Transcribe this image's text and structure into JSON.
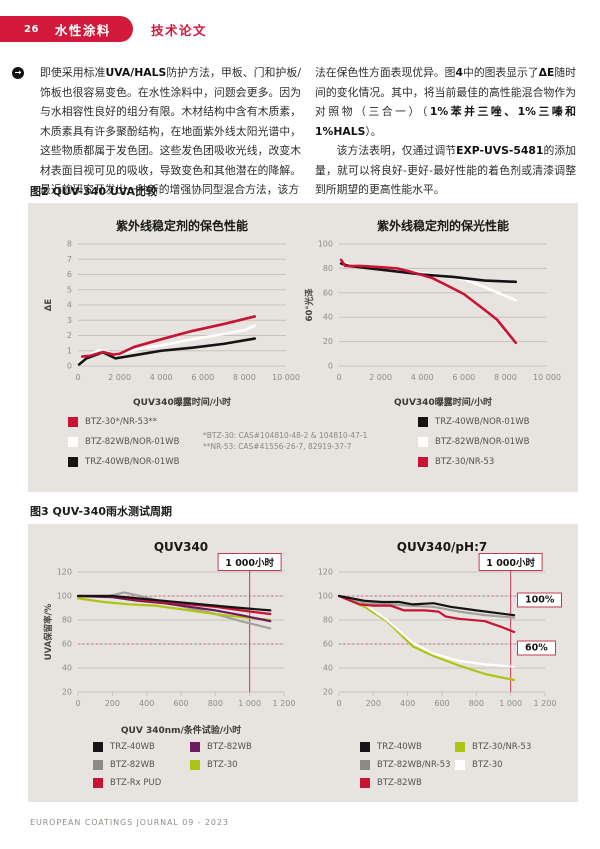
{
  "meta": {
    "accent": "#d2193b",
    "panel_bg": "#e7e4df",
    "grid_color": "#c7c3bc",
    "dashed_color": "#d4717d",
    "vline_color": "#c23a52"
  },
  "header": {
    "page_number": "26",
    "section": "水性涂料",
    "article_type": "技术论文",
    "bullet_icon": "→"
  },
  "intro": {
    "left_paragraph": [
      {
        "t": "即使采用标准"
      },
      {
        "t": "UVA/HALS",
        "b": true
      },
      {
        "t": "防护方法，甲板、门和护板/饰板也很容易变色。在水性涂料中，问题会更多。因为与水相容性良好的组分有限。木材结构中含有木质素，木质素具有许多聚酚结构，在地面紫外线太阳光谱中，这些物质都属于发色团。这些发色团吸收光线，改变木材表面目视可见的吸收，导致变色和其他潜在的降解。最近的研究开发出一种新的增强协同型混合方法，该方"
      }
    ],
    "right_paragraph_1": [
      {
        "t": "法在保色性方面表现优异。图"
      },
      {
        "t": "4",
        "b": true
      },
      {
        "t": "中的图表显示了"
      },
      {
        "t": "ΔE",
        "b": true
      },
      {
        "t": "随时间的变化情况。其中，将当前最佳的高性能混合物作为对照物（三合一）（"
      },
      {
        "t": "1%苯并三唑、1%三嗪和1%HALS",
        "b": true
      },
      {
        "t": "）。"
      }
    ],
    "right_paragraph_2": [
      {
        "t": "该方法表明，仅通过调节"
      },
      {
        "t": "EXP-UVS-5481",
        "b": true
      },
      {
        "t": "的添加量，就可以将良好-更好-最好性能的着色剂或清漆调整到所期望的更高性能水平。"
      }
    ]
  },
  "figure2": {
    "heading": "图2 QUV-340 UVA比较",
    "legend_left": [
      {
        "color": "#c81334",
        "label": "BTZ-30*/NR-53**"
      },
      {
        "color": "#ffffff",
        "label": "BTZ-82WB/NOR-01WB"
      },
      {
        "color": "#141414",
        "label": "TRZ-40WB/NOR-01WB"
      }
    ],
    "footnote_lines": [
      "*BTZ-30: CAS#104810-48-2 & 104810-47-1",
      "**NR-53: CAS#41556-26-7, 82919-37-7"
    ],
    "legend_right": [
      {
        "color": "#141414",
        "label": "TRZ-40WB/NOR-01WB"
      },
      {
        "color": "#ffffff",
        "label": "BTZ-82WB/NOR-01WB"
      },
      {
        "color": "#c81334",
        "label": "BTZ-30/NR-53"
      }
    ]
  },
  "figure3": {
    "heading": "图3 QUV-340雨水测试周期",
    "legend_left_col1": [
      {
        "color": "#141414",
        "label": "TRZ-40WB"
      },
      {
        "color": "#8c8984",
        "label": "BTZ-82WB"
      },
      {
        "color": "#c81334",
        "label": "BTZ-Rx PUD"
      }
    ],
    "legend_left_col2": [
      {
        "color": "#6d1a5f",
        "label": "BTZ-82WB"
      },
      {
        "color": "#aec414",
        "label": "BTZ-30"
      }
    ],
    "legend_right_col1": [
      {
        "color": "#141414",
        "label": "TRZ-40WB"
      },
      {
        "color": "#8c8984",
        "label": "BTZ-82WB/NR-53"
      },
      {
        "color": "#c81334",
        "label": "BTZ-82WB"
      }
    ],
    "legend_right_col2": [
      {
        "color": "#aec414",
        "label": "BTZ-30/NR-53"
      },
      {
        "color": "#ffffff",
        "label": "BTZ-30"
      }
    ]
  },
  "footer": {
    "text": "EUROPEAN COATINGS JOURNAL 09 - 2023"
  },
  "chart_data": [
    {
      "type": "line",
      "title": "紫外线稳定剂的保色性能",
      "ylabel": "ΔE",
      "xlabel": "QUV340曝露时间/小时",
      "xlim": [
        0,
        10000
      ],
      "ylim": [
        0,
        8
      ],
      "grid": "horizontal",
      "yticks": [
        {
          "v": 0,
          "l": "0"
        },
        {
          "v": 1,
          "l": "1"
        },
        {
          "v": 2,
          "l": "2"
        },
        {
          "v": 3,
          "l": "3"
        },
        {
          "v": 4,
          "l": "4"
        },
        {
          "v": 5,
          "l": "5"
        },
        {
          "v": 6,
          "l": "6"
        },
        {
          "v": 7,
          "l": "7"
        },
        {
          "v": 8,
          "l": "8"
        }
      ],
      "xticks": [
        {
          "v": 0,
          "l": "0"
        },
        {
          "v": 2000,
          "l": "2 000"
        },
        {
          "v": 4000,
          "l": "4 000"
        },
        {
          "v": 6000,
          "l": "6 000"
        },
        {
          "v": 8000,
          "l": "8 000"
        },
        {
          "v": 10000,
          "l": "10 000"
        }
      ],
      "series": [
        {
          "name": "BTZ-82WB/NOR-01WB",
          "color": "#ffffff",
          "points": [
            [
              50,
              0.2
            ],
            [
              400,
              0.6
            ],
            [
              1000,
              1.05
            ],
            [
              1400,
              0.95
            ],
            [
              1800,
              0.7
            ],
            [
              2700,
              1.05
            ],
            [
              4000,
              1.35
            ],
            [
              5500,
              1.75
            ],
            [
              7000,
              2.1
            ],
            [
              8000,
              2.35
            ],
            [
              8500,
              2.65
            ]
          ]
        },
        {
          "name": "TRZ-40WB/NOR-01WB",
          "color": "#141414",
          "points": [
            [
              50,
              0.1
            ],
            [
              400,
              0.5
            ],
            [
              1200,
              0.9
            ],
            [
              1800,
              0.5
            ],
            [
              2700,
              0.7
            ],
            [
              4000,
              1.0
            ],
            [
              5500,
              1.2
            ],
            [
              7000,
              1.45
            ],
            [
              8500,
              1.8
            ]
          ]
        },
        {
          "name": "BTZ-30*/NR-53**",
          "color": "#c81334",
          "points": [
            [
              200,
              0.62
            ],
            [
              600,
              0.68
            ],
            [
              1200,
              0.92
            ],
            [
              1700,
              0.75
            ],
            [
              2000,
              0.8
            ],
            [
              2700,
              1.25
            ],
            [
              4000,
              1.75
            ],
            [
              5500,
              2.3
            ],
            [
              7000,
              2.75
            ],
            [
              8500,
              3.25
            ]
          ]
        }
      ],
      "annotations": []
    },
    {
      "type": "line",
      "title": "紫外线稳定剂的保光性能",
      "ylabel": "60°光泽",
      "xlabel": "QUV340曝露时间/小时",
      "xlim": [
        0,
        10000
      ],
      "ylim": [
        0,
        100
      ],
      "grid": "horizontal",
      "yticks": [
        {
          "v": 0,
          "l": "0"
        },
        {
          "v": 20,
          "l": "20"
        },
        {
          "v": 40,
          "l": "40"
        },
        {
          "v": 60,
          "l": "60"
        },
        {
          "v": 80,
          "l": "80"
        },
        {
          "v": 100,
          "l": "100"
        }
      ],
      "xticks": [
        {
          "v": 0,
          "l": "0"
        },
        {
          "v": 2000,
          "l": "2 000"
        },
        {
          "v": 4000,
          "l": "4 000"
        },
        {
          "v": 6000,
          "l": "6 000"
        },
        {
          "v": 8000,
          "l": "8 000"
        },
        {
          "v": 10000,
          "l": "10 000"
        }
      ],
      "series": [
        {
          "name": "BTZ-82WB/NOR-01WB",
          "color": "#ffffff",
          "points": [
            [
              100,
              86
            ],
            [
              500,
              83
            ],
            [
              1500,
              81
            ],
            [
              2500,
              79
            ],
            [
              4000,
              76
            ],
            [
              5000,
              74
            ],
            [
              6000,
              71
            ],
            [
              6800,
              66
            ],
            [
              7500,
              61
            ],
            [
              8500,
              54
            ]
          ]
        },
        {
          "name": "TRZ-40WB/NOR-01WB",
          "color": "#141414",
          "points": [
            [
              100,
              84
            ],
            [
              500,
              82
            ],
            [
              1500,
              80
            ],
            [
              2500,
              78
            ],
            [
              4000,
              75
            ],
            [
              5500,
              73
            ],
            [
              7000,
              70
            ],
            [
              8500,
              69
            ]
          ]
        },
        {
          "name": "BTZ-30/NR-53",
          "color": "#c81334",
          "points": [
            [
              100,
              87
            ],
            [
              300,
              82
            ],
            [
              1000,
              82
            ],
            [
              2000,
              81
            ],
            [
              2800,
              80
            ],
            [
              3500,
              77
            ],
            [
              4500,
              72
            ],
            [
              5200,
              66
            ],
            [
              6000,
              59
            ],
            [
              7000,
              46
            ],
            [
              7600,
              38
            ],
            [
              8500,
              19
            ]
          ]
        }
      ],
      "annotations": []
    },
    {
      "type": "line",
      "title": "QUV340",
      "ylabel": "UVA保留率/%",
      "xlabel": "QUV 340nm/条件试验/小时",
      "xlim": [
        0,
        1200
      ],
      "ylim": [
        20,
        120
      ],
      "grid": "horizontal",
      "xtick_marks": true,
      "dashed_lines": [
        100,
        60
      ],
      "vline": 1000,
      "yticks": [
        {
          "v": 20,
          "l": "20"
        },
        {
          "v": 40,
          "l": "40"
        },
        {
          "v": 60,
          "l": "60"
        },
        {
          "v": 80,
          "l": "80"
        },
        {
          "v": 100,
          "l": "100"
        },
        {
          "v": 120,
          "l": "120"
        }
      ],
      "xticks": [
        {
          "v": 0,
          "l": "0"
        },
        {
          "v": 200,
          "l": "200"
        },
        {
          "v": 400,
          "l": "400"
        },
        {
          "v": 600,
          "l": "600"
        },
        {
          "v": 800,
          "l": "800"
        },
        {
          "v": 1000,
          "l": "1 000"
        },
        {
          "v": 1200,
          "l": "1 200"
        }
      ],
      "series": [
        {
          "name": "BTZ-82WB",
          "color": "#a4a19c",
          "points": [
            [
              0,
              100
            ],
            [
              180,
              100
            ],
            [
              270,
              103
            ],
            [
              360,
              100
            ],
            [
              500,
              95
            ],
            [
              650,
              90
            ],
            [
              800,
              85
            ],
            [
              950,
              79
            ],
            [
              1120,
              73
            ]
          ]
        },
        {
          "name": "BTZ-30",
          "color": "#aec414",
          "points": [
            [
              0,
              98
            ],
            [
              150,
              95
            ],
            [
              300,
              93
            ],
            [
              450,
              92
            ],
            [
              550,
              90
            ],
            [
              700,
              87
            ],
            [
              850,
              84
            ],
            [
              1120,
              80
            ]
          ]
        },
        {
          "name": "BTZ-82WB",
          "color": "#6d1a5f",
          "points": [
            [
              0,
              100
            ],
            [
              200,
              99
            ],
            [
              350,
              96
            ],
            [
              500,
              94
            ],
            [
              650,
              91
            ],
            [
              800,
              88
            ],
            [
              950,
              84
            ],
            [
              1120,
              79
            ]
          ]
        },
        {
          "name": "BTZ-Rx PUD",
          "color": "#c81334",
          "points": [
            [
              0,
              100
            ],
            [
              200,
              100
            ],
            [
              350,
              97
            ],
            [
              500,
              95
            ],
            [
              650,
              93
            ],
            [
              800,
              91
            ],
            [
              950,
              88
            ],
            [
              1120,
              85
            ]
          ]
        },
        {
          "name": "TRZ-40WB",
          "color": "#141414",
          "points": [
            [
              0,
              100
            ],
            [
              200,
              100
            ],
            [
              350,
              98
            ],
            [
              500,
              96
            ],
            [
              650,
              94
            ],
            [
              800,
              92
            ],
            [
              950,
              90
            ],
            [
              1120,
              88
            ]
          ]
        }
      ],
      "annotations": [
        {
          "text": "1 000小时",
          "x": 1000
        }
      ]
    },
    {
      "type": "line",
      "title": "QUV340/pH:7",
      "ylabel": "",
      "xlabel": "",
      "xlim": [
        0,
        1200
      ],
      "ylim": [
        20,
        120
      ],
      "grid": "horizontal",
      "xtick_marks": true,
      "dashed_lines": [
        100,
        60
      ],
      "vline": 1000,
      "yticks": [
        {
          "v": 20,
          "l": "20"
        },
        {
          "v": 40,
          "l": "40"
        },
        {
          "v": 60,
          "l": "60"
        },
        {
          "v": 80,
          "l": "80"
        },
        {
          "v": 100,
          "l": "100"
        },
        {
          "v": 120,
          "l": "120"
        }
      ],
      "xticks": [
        {
          "v": 0,
          "l": "0"
        },
        {
          "v": 200,
          "l": "200"
        },
        {
          "v": 400,
          "l": "400"
        },
        {
          "v": 600,
          "l": "600"
        },
        {
          "v": 800,
          "l": "800"
        },
        {
          "v": 1000,
          "l": "1 000"
        },
        {
          "v": 1200,
          "l": "1 200"
        }
      ],
      "series": [
        {
          "name": "BTZ-30/NR-53",
          "color": "#aec414",
          "points": [
            [
              0,
              100
            ],
            [
              150,
              91
            ],
            [
              280,
              79
            ],
            [
              430,
              58
            ],
            [
              550,
              50
            ],
            [
              700,
              42
            ],
            [
              850,
              35
            ],
            [
              1020,
              30
            ]
          ]
        },
        {
          "name": "BTZ-30",
          "color": "#ffffff",
          "points": [
            [
              0,
              100
            ],
            [
              150,
              93
            ],
            [
              280,
              80
            ],
            [
              430,
              61
            ],
            [
              550,
              52
            ],
            [
              700,
              46
            ],
            [
              850,
              43
            ],
            [
              1020,
              41
            ]
          ]
        },
        {
          "name": "BTZ-82WB/NR-53",
          "color": "#a4a19c",
          "points": [
            [
              0,
              100
            ],
            [
              150,
              94
            ],
            [
              300,
              93
            ],
            [
              400,
              92
            ],
            [
              550,
              91
            ],
            [
              700,
              87
            ],
            [
              850,
              84
            ],
            [
              1020,
              82
            ]
          ]
        },
        {
          "name": "BTZ-82WB",
          "color": "#c81334",
          "points": [
            [
              0,
              100
            ],
            [
              120,
              93
            ],
            [
              200,
              92
            ],
            [
              300,
              92
            ],
            [
              380,
              88
            ],
            [
              500,
              88
            ],
            [
              580,
              87
            ],
            [
              620,
              83
            ],
            [
              700,
              81
            ],
            [
              850,
              79
            ],
            [
              950,
              74
            ],
            [
              1020,
              70
            ]
          ]
        },
        {
          "name": "TRZ-40WB",
          "color": "#141414",
          "points": [
            [
              0,
              100
            ],
            [
              150,
              96
            ],
            [
              250,
              95
            ],
            [
              350,
              95
            ],
            [
              430,
              93
            ],
            [
              550,
              94
            ],
            [
              650,
              91
            ],
            [
              800,
              88
            ],
            [
              1020,
              84
            ]
          ]
        }
      ],
      "annotations": [
        {
          "text": "1 000小时",
          "x": 1000
        },
        {
          "text": "100%",
          "y": 97
        },
        {
          "text": "60%",
          "y": 57
        }
      ]
    }
  ]
}
